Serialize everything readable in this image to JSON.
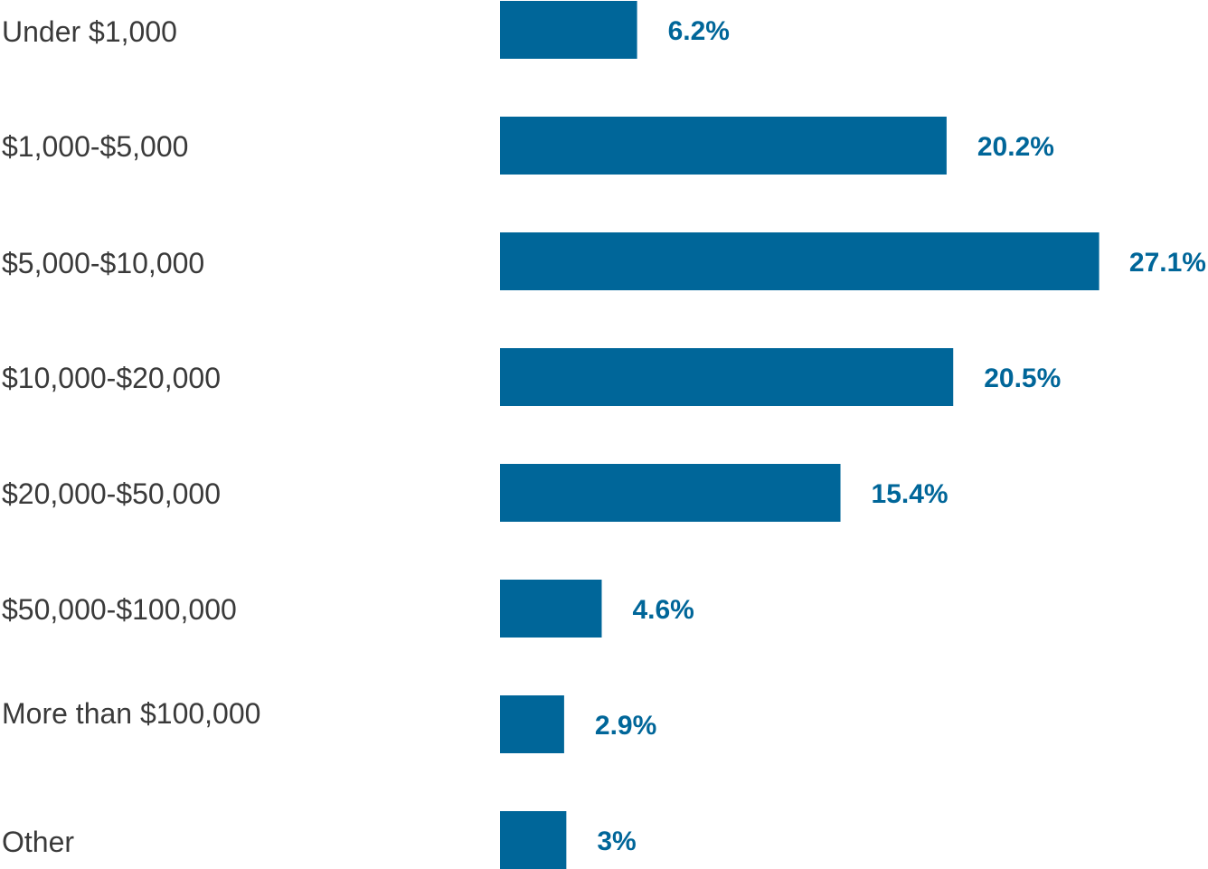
{
  "colors": {
    "bar": "#006699",
    "label_text": "#3a3a3a",
    "value_text": "#006699",
    "background": "#ffffff"
  },
  "chart_data": {
    "type": "bar",
    "orientation": "horizontal",
    "title": "",
    "xlabel": "",
    "ylabel": "",
    "grid": false,
    "legend": "none",
    "xlim": [
      0,
      27.1
    ],
    "categories": [
      "Under $1,000",
      "$1,000-$5,000",
      "$5,000-$10,000",
      "$10,000-$20,000",
      "$20,000-$50,000",
      "$50,000-$100,000",
      "More than $100,000",
      "Other"
    ],
    "values": [
      6.2,
      20.2,
      27.1,
      20.5,
      15.4,
      4.6,
      2.9,
      3
    ],
    "value_labels": [
      "6.2%",
      "20.2%",
      "27.1%",
      "20.5%",
      "15.4%",
      "4.6%",
      "2.9%",
      "3%"
    ]
  }
}
